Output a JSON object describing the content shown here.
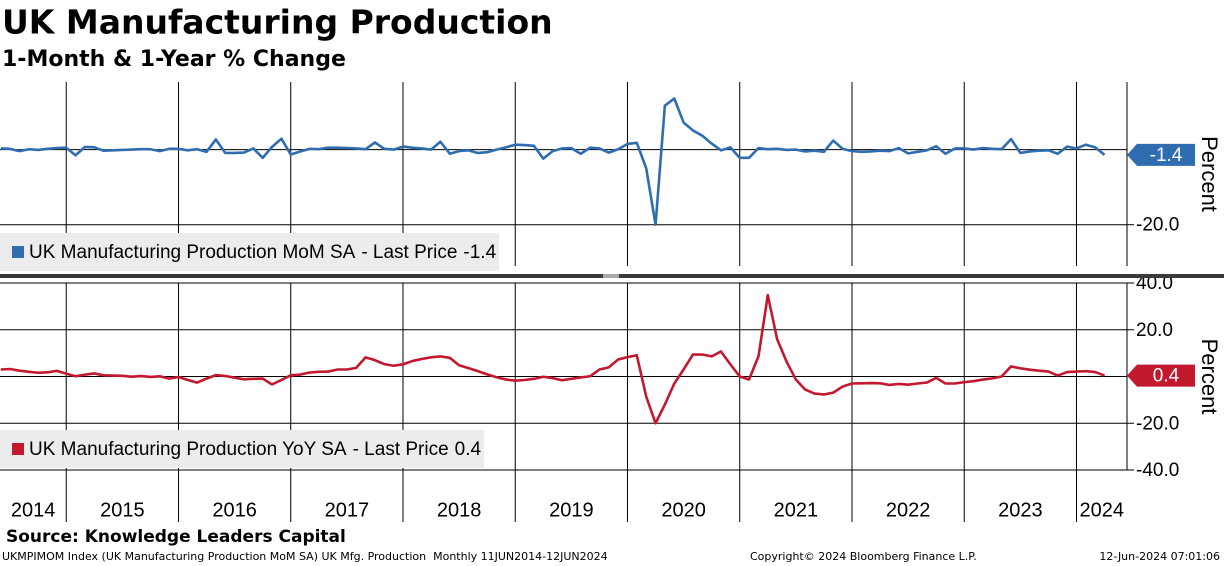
{
  "header": {
    "title": "UK Manufacturing Production",
    "subtitle": "1-Month & 1-Year % Change"
  },
  "footer": {
    "source": "Source: Knowledge Leaders Capital",
    "ticker_line": "UKMPIMOM Index (UK Manufacturing Production MoM SA) UK Mfg. Production  Monthly 11JUN2014-12JUN2024",
    "copyright": "Copyright© 2024 Bloomberg Finance L.P.",
    "timestamp": "12-Jun-2024 07:01:06"
  },
  "chart_data": [
    {
      "type": "line",
      "y_label": "Percent",
      "legend_suffix": "- Last Price",
      "grid": true,
      "zero_line": true,
      "last_price_tag": true,
      "xlim": [
        2014.41,
        2024.45
      ],
      "xticks": [
        2014,
        2015,
        2016,
        2017,
        2018,
        2019,
        2020,
        2021,
        2022,
        2023,
        2024
      ],
      "ylim": [
        -31,
        18
      ],
      "yticks": [
        {
          "value": -20,
          "label": "-20.0"
        }
      ],
      "x": [
        2014.417,
        2014.5,
        2014.583,
        2014.667,
        2014.75,
        2014.833,
        2014.917,
        2015,
        2015.083,
        2015.167,
        2015.25,
        2015.333,
        2015.417,
        2015.5,
        2015.583,
        2015.667,
        2015.75,
        2015.833,
        2015.917,
        2016,
        2016.083,
        2016.167,
        2016.25,
        2016.333,
        2016.417,
        2016.5,
        2016.583,
        2016.667,
        2016.75,
        2016.833,
        2016.917,
        2017,
        2017.083,
        2017.167,
        2017.25,
        2017.333,
        2017.417,
        2017.5,
        2017.583,
        2017.667,
        2017.75,
        2017.833,
        2017.917,
        2018,
        2018.083,
        2018.167,
        2018.25,
        2018.333,
        2018.417,
        2018.5,
        2018.583,
        2018.667,
        2018.75,
        2018.833,
        2018.917,
        2019,
        2019.083,
        2019.167,
        2019.25,
        2019.333,
        2019.417,
        2019.5,
        2019.583,
        2019.667,
        2019.75,
        2019.833,
        2019.917,
        2020,
        2020.083,
        2020.167,
        2020.25,
        2020.333,
        2020.417,
        2020.5,
        2020.583,
        2020.667,
        2020.75,
        2020.833,
        2020.917,
        2021,
        2021.083,
        2021.167,
        2021.25,
        2021.333,
        2021.417,
        2021.5,
        2021.583,
        2021.667,
        2021.75,
        2021.833,
        2021.917,
        2022,
        2022.083,
        2022.167,
        2022.25,
        2022.333,
        2022.417,
        2022.5,
        2022.583,
        2022.667,
        2022.75,
        2022.833,
        2022.917,
        2023,
        2023.083,
        2023.167,
        2023.25,
        2023.333,
        2023.417,
        2023.5,
        2023.583,
        2023.667,
        2023.75,
        2023.833,
        2023.917,
        2024,
        2024.083,
        2024.167,
        2024.25
      ],
      "series": [
        {
          "name": "UK Manufacturing Production MoM SA",
          "color": "#2f6db0",
          "values": [
            0.3,
            0.2,
            -0.4,
            0.1,
            -0.1,
            0.2,
            0.4,
            0.5,
            -1.5,
            0.7,
            0.6,
            -0.3,
            -0.2,
            -0.1,
            0.0,
            0.1,
            0.1,
            -0.4,
            0.2,
            0.2,
            -0.2,
            0.1,
            -0.6,
            2.7,
            -0.9,
            -0.9,
            -0.8,
            0.3,
            -2.2,
            0.7,
            2.9,
            -1.3,
            -0.5,
            0.2,
            0.1,
            0.5,
            0.5,
            0.4,
            0.3,
            0.1,
            1.9,
            0.2,
            0.0,
            0.8,
            0.5,
            0.3,
            0.0,
            2.1,
            -1.1,
            -0.4,
            -0.2,
            -0.9,
            -0.7,
            0.0,
            0.6,
            1.3,
            1.2,
            1.0,
            -2.4,
            -0.4,
            0.3,
            0.4,
            -1.1,
            0.5,
            0.3,
            -0.8,
            0.1,
            1.5,
            1.8,
            -5.0,
            -20.0,
            11.7,
            13.6,
            7.2,
            5.1,
            3.7,
            1.6,
            -0.2,
            0.6,
            -2.2,
            -2.2,
            0.4,
            0.1,
            0.2,
            -0.1,
            0.0,
            -0.5,
            -0.3,
            -0.6,
            2.4,
            0.2,
            -0.4,
            -0.6,
            -0.5,
            -0.3,
            -0.4,
            0.4,
            -1.0,
            -0.6,
            -0.2,
            0.9,
            -1.1,
            0.3,
            0.3,
            0.0,
            0.4,
            0.2,
            0.1,
            2.8,
            -0.9,
            -0.5,
            -0.3,
            -0.2,
            -1.1,
            0.8,
            0.3,
            1.3,
            0.6,
            -1.4
          ]
        }
      ]
    },
    {
      "type": "line",
      "y_label": "Percent",
      "legend_suffix": "- Last Price",
      "grid": true,
      "zero_line": true,
      "last_price_tag": true,
      "xlim": [
        2014.41,
        2024.45
      ],
      "xticks": [
        2014,
        2015,
        2016,
        2017,
        2018,
        2019,
        2020,
        2021,
        2022,
        2023,
        2024
      ],
      "ylim": [
        -40,
        40
      ],
      "yticks": [
        {
          "value": 40,
          "label": "40.0"
        },
        {
          "value": 20,
          "label": "20.0"
        },
        {
          "value": -20,
          "label": "-20.0"
        },
        {
          "value": -40,
          "label": "-40.0"
        }
      ],
      "x": [
        2014.417,
        2014.5,
        2014.583,
        2014.667,
        2014.75,
        2014.833,
        2014.917,
        2015,
        2015.083,
        2015.167,
        2015.25,
        2015.333,
        2015.417,
        2015.5,
        2015.583,
        2015.667,
        2015.75,
        2015.833,
        2015.917,
        2016,
        2016.083,
        2016.167,
        2016.25,
        2016.333,
        2016.417,
        2016.5,
        2016.583,
        2016.667,
        2016.75,
        2016.833,
        2016.917,
        2017,
        2017.083,
        2017.167,
        2017.25,
        2017.333,
        2017.417,
        2017.5,
        2017.583,
        2017.667,
        2017.75,
        2017.833,
        2017.917,
        2018,
        2018.083,
        2018.167,
        2018.25,
        2018.333,
        2018.417,
        2018.5,
        2018.583,
        2018.667,
        2018.75,
        2018.833,
        2018.917,
        2019,
        2019.083,
        2019.167,
        2019.25,
        2019.333,
        2019.417,
        2019.5,
        2019.583,
        2019.667,
        2019.75,
        2019.833,
        2019.917,
        2020,
        2020.083,
        2020.167,
        2020.25,
        2020.333,
        2020.417,
        2020.5,
        2020.583,
        2020.667,
        2020.75,
        2020.833,
        2020.917,
        2021,
        2021.083,
        2021.167,
        2021.25,
        2021.333,
        2021.417,
        2021.5,
        2021.583,
        2021.667,
        2021.75,
        2021.833,
        2021.917,
        2022,
        2022.083,
        2022.167,
        2022.25,
        2022.333,
        2022.417,
        2022.5,
        2022.583,
        2022.667,
        2022.75,
        2022.833,
        2022.917,
        2023,
        2023.083,
        2023.167,
        2023.25,
        2023.333,
        2023.417,
        2023.5,
        2023.583,
        2023.667,
        2023.75,
        2023.833,
        2023.917,
        2024,
        2024.083,
        2024.167,
        2024.25
      ],
      "series": [
        {
          "name": "UK Manufacturing Production YoY SA",
          "color": "#c4182f",
          "values": [
            3.0,
            3.2,
            2.5,
            2.0,
            1.6,
            1.8,
            2.4,
            1.2,
            0.1,
            0.8,
            1.3,
            0.5,
            0.4,
            0.3,
            -0.1,
            0.2,
            -0.2,
            0.1,
            -0.9,
            -0.2,
            -1.5,
            -2.6,
            -0.9,
            0.6,
            0.2,
            -0.5,
            -1.2,
            -1.0,
            -0.9,
            -3.4,
            -1.5,
            0.5,
            0.8,
            1.7,
            2.0,
            2.1,
            3.0,
            3.0,
            3.7,
            8.2,
            7.0,
            5.3,
            4.6,
            5.2,
            6.6,
            7.5,
            8.2,
            8.6,
            8.0,
            4.8,
            3.6,
            2.3,
            0.9,
            -0.3,
            -1.3,
            -1.8,
            -1.5,
            -1.0,
            -0.1,
            -0.7,
            -1.6,
            -1.0,
            -0.4,
            0.1,
            3.0,
            3.9,
            7.3,
            8.3,
            9.1,
            -8.6,
            -20.0,
            -12.0,
            -3.0,
            3.0,
            9.4,
            9.4,
            8.6,
            10.7,
            5.2,
            0.0,
            -1.3,
            8.6,
            34.8,
            16.0,
            6.4,
            -1.3,
            -5.6,
            -7.3,
            -7.7,
            -6.9,
            -4.3,
            -3.0,
            -2.9,
            -2.8,
            -2.9,
            -3.6,
            -3.2,
            -3.5,
            -3.0,
            -2.6,
            -0.6,
            -3.0,
            -3.0,
            -2.4,
            -2.0,
            -1.3,
            -0.8,
            0.0,
            4.3,
            3.5,
            2.9,
            2.5,
            2.1,
            0.4,
            1.9,
            2.1,
            2.3,
            1.9,
            0.4
          ]
        }
      ]
    }
  ]
}
